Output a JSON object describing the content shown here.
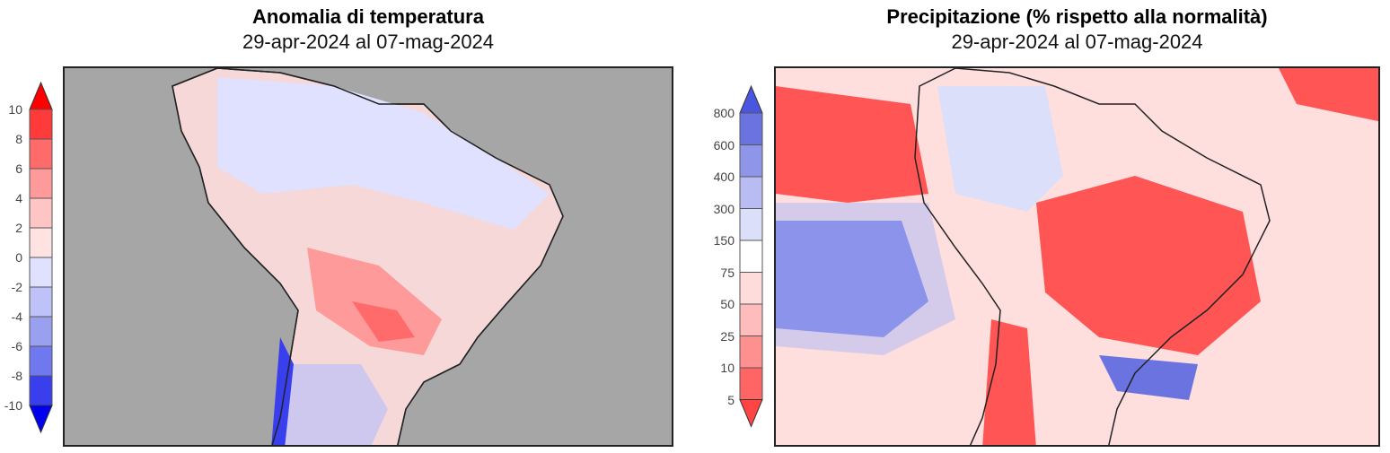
{
  "left": {
    "title": "Anomalia di temperatura",
    "subtitle": "29-apr-2024 al 07-mag-2024",
    "colorbar": {
      "ticks": [
        "10",
        "8",
        "6",
        "4",
        "2",
        "0",
        "-2",
        "-4",
        "-6",
        "-8",
        "-10"
      ],
      "colors": [
        "#ff3a3a",
        "#ff6b6b",
        "#ff9a9a",
        "#ffc4c4",
        "#ffe3e3",
        "#dfe1ff",
        "#bfc2f8",
        "#9aa0f0",
        "#6f78ee",
        "#3a3fee"
      ],
      "top_arrow": "#ff0000",
      "bottom_arrow": "#0000ee"
    },
    "ocean_color": "#a6a6a6"
  },
  "right": {
    "title": "Precipitazione (% rispetto alla normalità)",
    "subtitle": "29-apr-2024 al 07-mag-2024",
    "colorbar": {
      "ticks": [
        "800",
        "600",
        "400",
        "300",
        "150",
        "75",
        "50",
        "25",
        "10",
        "5"
      ],
      "colors": [
        "#6a73e0",
        "#8f95e8",
        "#b8bcf2",
        "#dcdff9",
        "#ffffff",
        "#ffdcdc",
        "#ffbcbc",
        "#ff9090",
        "#ff6565"
      ],
      "top_arrow": "#4a55e0",
      "bottom_arrow": "#ff4444"
    }
  }
}
